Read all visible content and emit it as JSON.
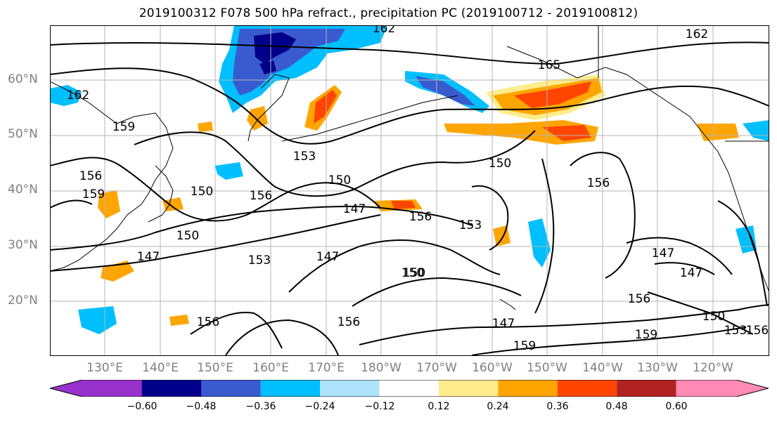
{
  "title": "2019100312 F078 500 hPa refract., precipitation PC (2019100712 - 2019100812)",
  "lat_labels": [
    "60°N",
    "50°N",
    "40°N",
    "30°N",
    "20°N"
  ],
  "lon_labels": [
    "130°E",
    "140°E",
    "150°E",
    "160°E",
    "170°E",
    "180°W",
    "170°W",
    "160°W",
    "150°W",
    "140°W",
    "130°W",
    "120°W"
  ],
  "contour_labels": [
    "162",
    "162",
    "165",
    "162",
    "159",
    "156",
    "159",
    "150",
    "156",
    "153",
    "150",
    "150",
    "147",
    "156",
    "153",
    "150",
    "147",
    "153",
    "147",
    "150",
    "156",
    "156",
    "159",
    "156",
    "147",
    "159",
    "156",
    "147",
    "147",
    "150",
    "153",
    "156",
    "150"
  ],
  "colorbar": {
    "colors": [
      "#9932cc",
      "#00008b",
      "#3a5bcf",
      "#00bfff",
      "#aee3fb",
      "#ffffff",
      "#ffec8b",
      "#ffa500",
      "#ff4500",
      "#b22222",
      "#ff8ab4"
    ],
    "ticks": [
      "−0.60",
      "−0.48",
      "−0.36",
      "−0.24",
      "−0.12",
      "0.12",
      "0.24",
      "0.36",
      "0.48",
      "0.60"
    ]
  }
}
